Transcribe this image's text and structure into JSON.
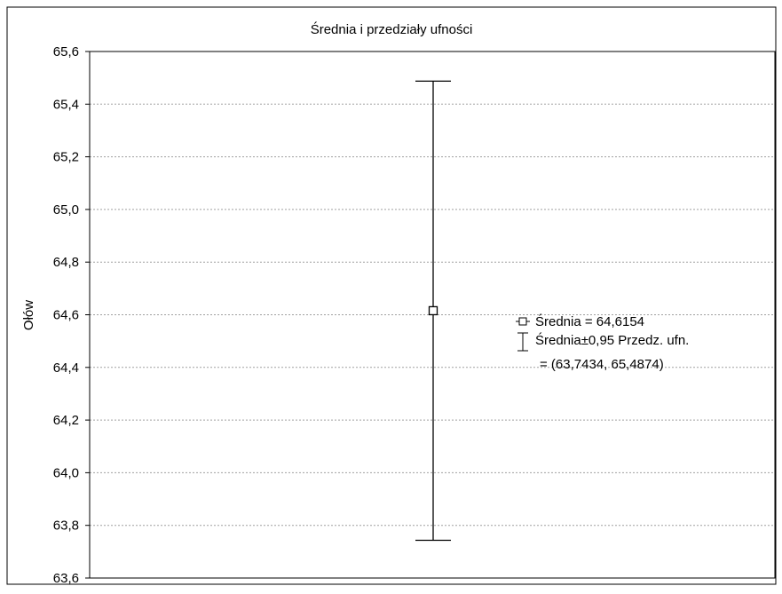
{
  "chart_data": {
    "type": "error-bar",
    "title": "Średnia i przedziały ufności",
    "ylabel": "Ołów",
    "xlabel": "",
    "ylim": [
      63.6,
      65.6
    ],
    "yticks": [
      63.6,
      63.8,
      64.0,
      64.2,
      64.4,
      64.6,
      64.8,
      65.0,
      65.2,
      65.4,
      65.6
    ],
    "ytick_labels": [
      "63,6",
      "63,8",
      "64,0",
      "64,2",
      "64,4",
      "64,6",
      "64,8",
      "65,0",
      "65,2",
      "65,4",
      "65,6"
    ],
    "grid": true,
    "mean": 64.6154,
    "ci_low": 63.7434,
    "ci_high": 65.4874,
    "legend": {
      "placement": "right",
      "mean_label": "Średnia = 64,6154",
      "ci_label_line1": "Średnia±0,95 Przedz. ufn.",
      "ci_label_line2": "= (63,7434, 65,4874)"
    }
  }
}
